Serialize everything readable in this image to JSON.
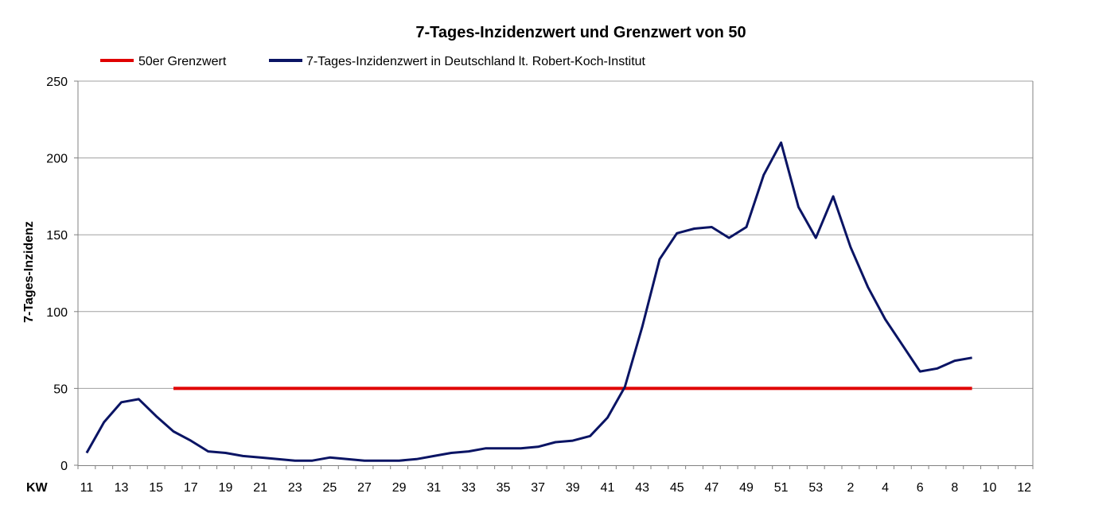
{
  "chart_data": {
    "type": "line",
    "title": "7-Tages-Inzidenzwert und Grenzwert von 50",
    "ylabel": "7-Tages-Inzidenz",
    "xlabel": "KW",
    "ylim": [
      0,
      250
    ],
    "yticks": [
      0,
      50,
      100,
      150,
      200,
      250
    ],
    "grid": "horizontal",
    "legend_position": "top-left",
    "x_tick_labels": [
      "11",
      "13",
      "15",
      "17",
      "19",
      "21",
      "23",
      "25",
      "27",
      "29",
      "31",
      "33",
      "35",
      "37",
      "39",
      "41",
      "43",
      "45",
      "47",
      "49",
      "51",
      "53",
      "2",
      "4",
      "6",
      "8",
      "10",
      "12"
    ],
    "x": [
      "11",
      "12",
      "13",
      "14",
      "15",
      "16",
      "17",
      "18",
      "19",
      "20",
      "21",
      "22",
      "23",
      "24",
      "25",
      "26",
      "27",
      "28",
      "29",
      "30",
      "31",
      "32",
      "33",
      "34",
      "35",
      "36",
      "37",
      "38",
      "39",
      "40",
      "41",
      "42",
      "43",
      "44",
      "45",
      "46",
      "47",
      "48",
      "49",
      "50",
      "51",
      "52",
      "53",
      "1",
      "2",
      "3",
      "4",
      "5",
      "6",
      "7",
      "8",
      "9",
      "10",
      "11",
      "12"
    ],
    "series": [
      {
        "name": "50er Grenzwert",
        "color": "#e00000",
        "values": [
          null,
          null,
          null,
          null,
          null,
          50,
          50,
          50,
          50,
          50,
          50,
          50,
          50,
          50,
          50,
          50,
          50,
          50,
          50,
          50,
          50,
          50,
          50,
          50,
          50,
          50,
          50,
          50,
          50,
          50,
          50,
          50,
          50,
          50,
          50,
          50,
          50,
          50,
          50,
          50,
          50,
          50,
          50,
          50,
          50,
          50,
          50,
          50,
          50,
          50,
          50,
          50,
          null,
          null,
          null
        ]
      },
      {
        "name": "7-Tages-Inzidenzwert in Deutschland lt. Robert-Koch-Institut",
        "color": "#0a1464",
        "values": [
          8,
          28,
          41,
          43,
          32,
          22,
          16,
          9,
          8,
          6,
          5,
          4,
          3,
          3,
          5,
          4,
          3,
          3,
          3,
          4,
          6,
          8,
          9,
          11,
          11,
          11,
          12,
          15,
          16,
          19,
          31,
          51,
          90,
          134,
          151,
          154,
          155,
          148,
          155,
          189,
          210,
          168,
          148,
          175,
          142,
          116,
          95,
          78,
          61,
          63,
          68,
          70,
          null,
          null,
          null
        ]
      }
    ]
  }
}
